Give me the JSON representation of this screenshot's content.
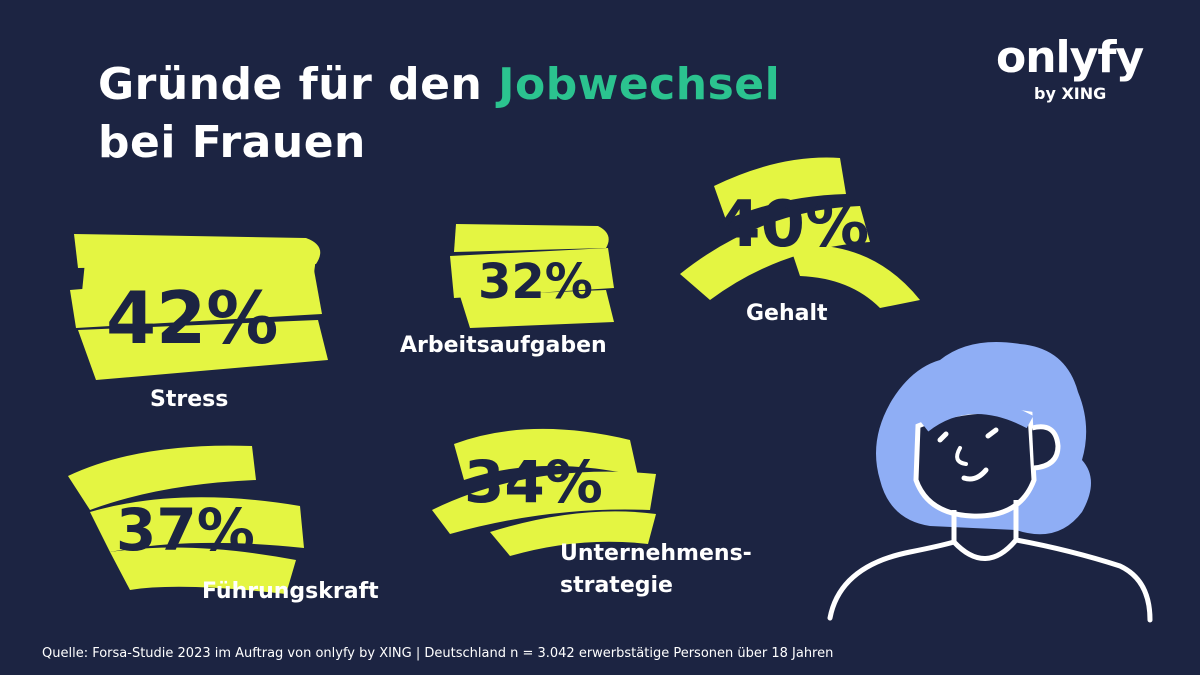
{
  "header": {
    "title_part1": "Gründe für den ",
    "title_accent": "Jobwechsel",
    "title_line2": "bei Frauen"
  },
  "logo": {
    "brand": "onlyfy",
    "sub": "by XING"
  },
  "stats": [
    {
      "value": "42%",
      "label": "Stress"
    },
    {
      "value": "32%",
      "label": "Arbeitsaufgaben"
    },
    {
      "value": "40%",
      "label": "Gehalt"
    },
    {
      "value": "37%",
      "label": "Führungskraft"
    },
    {
      "value": "34%",
      "label_line1": "Unternehmens-",
      "label_line2": "strategie"
    }
  ],
  "footer": {
    "source": "Quelle: Forsa-Studie 2023 im Auftrag von onlyfy by XING | Deutschland n = 3.042 erwerbstätige Personen über 18 Jahren"
  },
  "colors": {
    "background": "#1c2442",
    "highlight": "#e4f542",
    "accent": "#2bc38f",
    "hair": "#8faef5"
  },
  "icons": {
    "illustration": "woman-portrait-icon"
  }
}
